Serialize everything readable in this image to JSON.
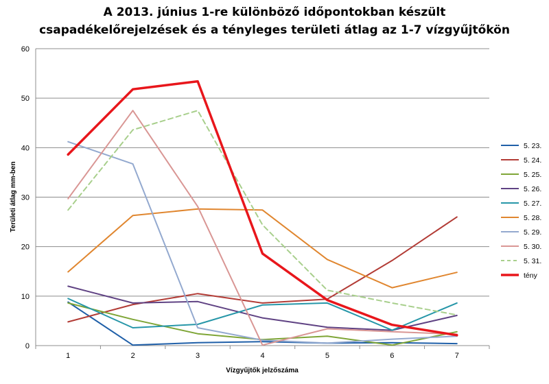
{
  "chart_data": {
    "type": "line",
    "title": "A 2013. június 1-re különböző időpontokban készült",
    "subtitle": "csapadékelőrejelzések és a tényleges területi átlag az 1-7 vízgyűjtőkön",
    "xlabel": "Vízgyűjtők jelzőszáma",
    "ylabel": "Területi átlag mm-ben",
    "categories": [
      "1",
      "2",
      "3",
      "4",
      "5",
      "6",
      "7"
    ],
    "ylim": [
      0,
      60
    ],
    "yticks": [
      "0",
      "10",
      "20",
      "30",
      "40",
      "50",
      "60"
    ],
    "grid": true,
    "legend_position": "right",
    "series": [
      {
        "name": "5. 23.",
        "color": "#1f5fa8",
        "width": 2,
        "dash": "",
        "values": [
          8.8,
          0.1,
          0.6,
          0.8,
          0.5,
          0.6,
          0.4
        ]
      },
      {
        "name": "5. 24.",
        "color": "#b23b35",
        "width": 2,
        "dash": "",
        "values": [
          4.8,
          8.3,
          10.5,
          8.6,
          9.4,
          17.2,
          26
        ]
      },
      {
        "name": "5. 25.",
        "color": "#7ea536",
        "width": 2,
        "dash": "",
        "values": [
          8.6,
          5.3,
          2.4,
          1.2,
          1.9,
          0.1,
          2.8
        ]
      },
      {
        "name": "5. 26.",
        "color": "#5f4283",
        "width": 2,
        "dash": "",
        "values": [
          12,
          8.6,
          8.9,
          5.6,
          3.7,
          3.1,
          6.1
        ]
      },
      {
        "name": "5. 27.",
        "color": "#2696a8",
        "width": 2,
        "dash": "",
        "values": [
          9.5,
          3.6,
          4.3,
          8.2,
          8.6,
          3.1,
          8.6
        ]
      },
      {
        "name": "5. 28.",
        "color": "#e0862f",
        "width": 2,
        "dash": "",
        "values": [
          14.9,
          26.3,
          27.6,
          27.4,
          17.4,
          11.7,
          14.8
        ]
      },
      {
        "name": "5. 29.",
        "color": "#93a9cf",
        "width": 2,
        "dash": "",
        "values": [
          41.2,
          36.7,
          3.6,
          1.1,
          0.5,
          1.3,
          1.9
        ]
      },
      {
        "name": "5. 30.",
        "color": "#d99694",
        "width": 2,
        "dash": "",
        "values": [
          29.7,
          47.5,
          28.1,
          0.1,
          3.4,
          2.8,
          2.3
        ]
      },
      {
        "name": "5. 31.",
        "color": "#a8cf8c",
        "width": 2,
        "dash": "7,5",
        "values": [
          27.4,
          43.6,
          47.5,
          24.4,
          11.2,
          8.6,
          6.2
        ]
      },
      {
        "name": "tény",
        "color": "#e8161b",
        "width": 3.5,
        "dash": "",
        "values": [
          38.6,
          51.8,
          53.4,
          18.6,
          9.2,
          4.2,
          2.1
        ]
      }
    ]
  }
}
